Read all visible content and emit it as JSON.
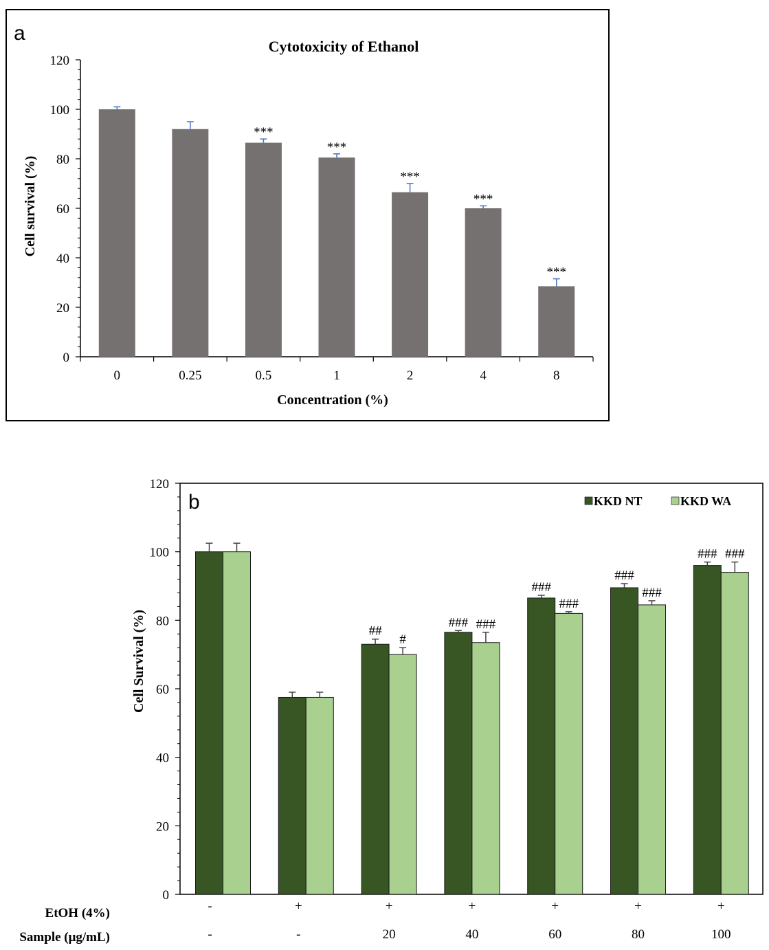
{
  "chart_data": [
    {
      "panel": "a",
      "type": "bar",
      "title": "Cytotoxicity of Ethanol",
      "xlabel": "Concentration (%)",
      "ylabel": "Cell survival (%)",
      "ylim": [
        0,
        120
      ],
      "yticks": [
        0,
        20,
        40,
        60,
        80,
        100,
        120
      ],
      "categories": [
        "0",
        "0.25",
        "0.5",
        "1",
        "2",
        "4",
        "8"
      ],
      "values": [
        100,
        92,
        86.5,
        80.5,
        66.5,
        60,
        28.5
      ],
      "errors": [
        1,
        3,
        1.5,
        1.5,
        3.5,
        1,
        3
      ],
      "annotations": [
        "",
        "",
        "***",
        "***",
        "***",
        "***",
        "***"
      ],
      "colors": {
        "bar": "#767171",
        "error": "#4472c4"
      }
    },
    {
      "panel": "b",
      "type": "bar",
      "xlabel": "",
      "ylabel": "Cell Survival (%)",
      "ylim": [
        0,
        120
      ],
      "yticks": [
        0,
        20,
        40,
        60,
        80,
        100,
        120
      ],
      "row_labels": {
        "etoh": "EtOH (4%)",
        "sample": "Sample (μg/mL)"
      },
      "etoh_row": [
        "-",
        "+",
        "+",
        "+",
        "+",
        "+",
        "+"
      ],
      "sample_row": [
        "-",
        "-",
        "20",
        "40",
        "60",
        "80",
        "100"
      ],
      "series": [
        {
          "name": "KKD NT",
          "color": "#375623",
          "values": [
            100,
            57.5,
            73,
            76.5,
            86.5,
            89.5,
            96
          ],
          "errors": [
            2.5,
            1.5,
            1.5,
            0.5,
            0.8,
            1.2,
            1
          ],
          "annotations": [
            "",
            "",
            "##",
            "###",
            "###",
            "###",
            "###"
          ]
        },
        {
          "name": "KKD WA",
          "color": "#a9d08e",
          "values": [
            100,
            57.5,
            70,
            73.5,
            82,
            84.5,
            94
          ],
          "errors": [
            2.5,
            1.5,
            2,
            3,
            0.5,
            1.2,
            3
          ],
          "annotations": [
            "",
            "",
            "#",
            "###",
            "###",
            "###",
            "###"
          ]
        }
      ]
    }
  ]
}
